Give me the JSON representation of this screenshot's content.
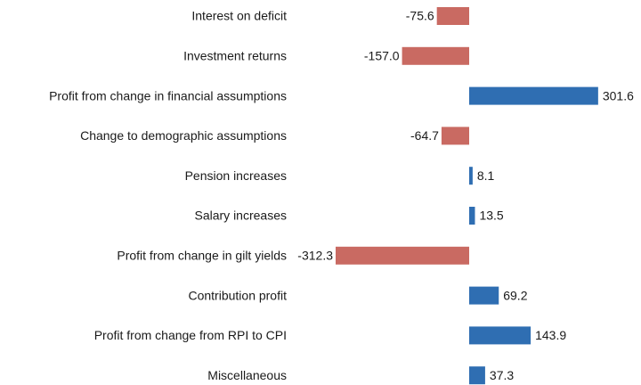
{
  "chart_data": {
    "type": "bar",
    "orientation": "horizontal",
    "categories": [
      "Interest on deficit",
      "Investment returns",
      "Profit from change in financial assumptions",
      "Change to demographic assumptions",
      "Pension increases",
      "Salary increases",
      "Profit from change in gilt yields",
      "Contribution profit",
      "Profit from change from RPI to CPI",
      "Miscellaneous"
    ],
    "values": [
      -75.6,
      -157.0,
      301.6,
      -64.7,
      8.1,
      13.5,
      -312.3,
      69.2,
      143.9,
      37.3
    ],
    "value_labels": [
      "-75.6",
      "-157.0",
      "301.6",
      "-64.7",
      "8.1",
      "13.5",
      "-312.3",
      "69.2",
      "143.9",
      "37.3"
    ],
    "positive_color": "#2f6eb2",
    "negative_color": "#c96a62"
  }
}
